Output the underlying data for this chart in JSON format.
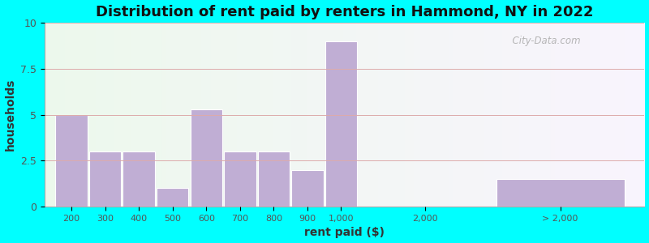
{
  "title": "Distribution of rent paid by renters in Hammond, NY in 2022",
  "xlabel": "rent paid ($)",
  "ylabel": "households",
  "ylim": [
    0,
    10
  ],
  "yticks": [
    0,
    2.5,
    5,
    7.5,
    10
  ],
  "background_outer": "#00FFFF",
  "bar_color": "#c0aed4",
  "bar_edgecolor": "#ffffff",
  "categories": [
    "200",
    "300",
    "400",
    "500",
    "600",
    "700",
    "800",
    "900",
    "1,000",
    "2,000",
    "> 2,000"
  ],
  "values": [
    5,
    3,
    3,
    1,
    5.3,
    3,
    3,
    2,
    9,
    0,
    1.5
  ],
  "watermark": "City-Data.com",
  "title_fontsize": 13,
  "label_fontsize": 10,
  "tick_fontsize": 8
}
